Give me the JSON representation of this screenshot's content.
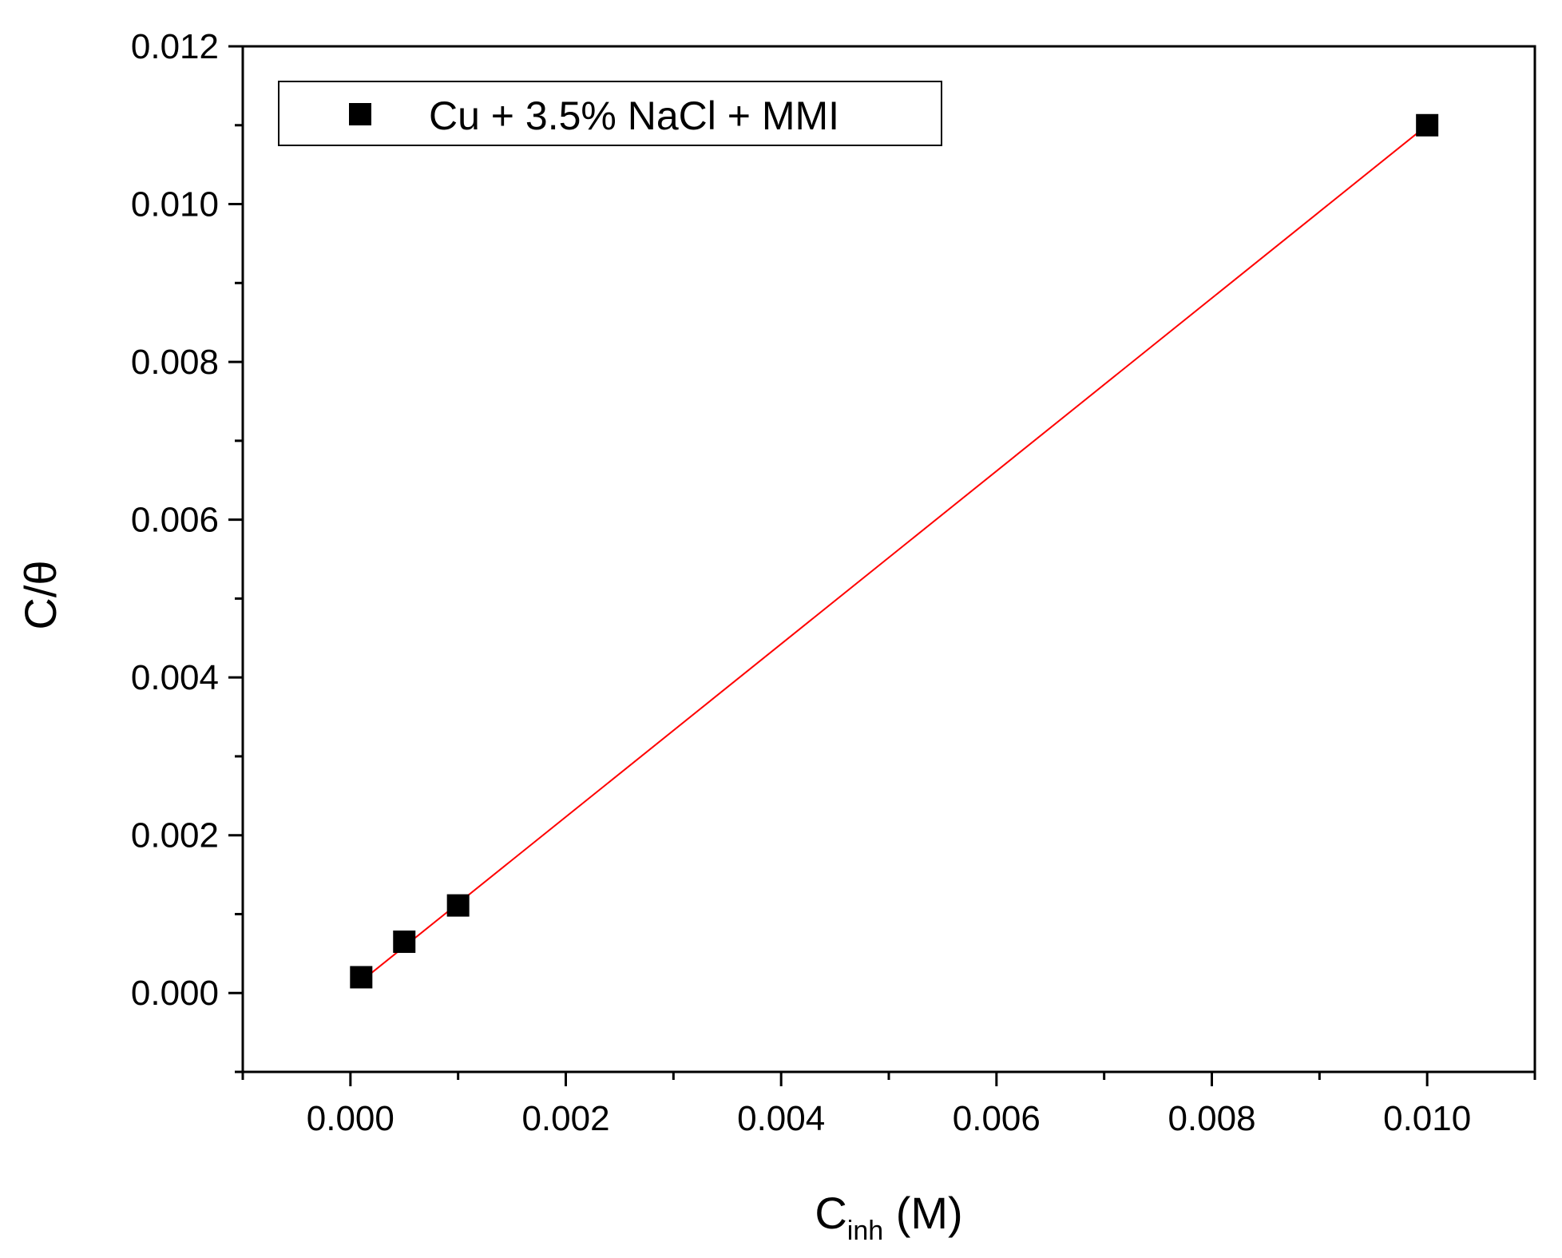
{
  "chart_data": {
    "type": "scatter",
    "title": "",
    "xlabel": {
      "main": "C",
      "sub": "inh",
      "suffix": " (M)"
    },
    "ylabel": "C/θ",
    "xlim": [
      -0.001,
      0.011
    ],
    "ylim": [
      -0.001,
      0.012
    ],
    "x_ticks": [
      0.0,
      0.002,
      0.004,
      0.006,
      0.008,
      0.01
    ],
    "x_tick_labels": [
      "0.000",
      "0.002",
      "0.004",
      "0.006",
      "0.008",
      "0.010"
    ],
    "y_ticks": [
      0.0,
      0.002,
      0.004,
      0.006,
      0.008,
      0.01,
      0.012
    ],
    "y_tick_labels": [
      "0.000",
      "0.002",
      "0.004",
      "0.006",
      "0.008",
      "0.010",
      "0.012"
    ],
    "grid": false,
    "legend_position": "top-left",
    "series": [
      {
        "name": "Cu + 3.5% NaCl + MMI",
        "marker": "square",
        "color": "#000000",
        "x": [
          0.0001,
          0.0005,
          0.001,
          0.01
        ],
        "y": [
          0.0002,
          0.00065,
          0.00111,
          0.011
        ]
      }
    ],
    "fit_line": {
      "color": "#ff0000",
      "x": [
        0.0001,
        0.01
      ],
      "y": [
        0.00015,
        0.011
      ]
    }
  }
}
